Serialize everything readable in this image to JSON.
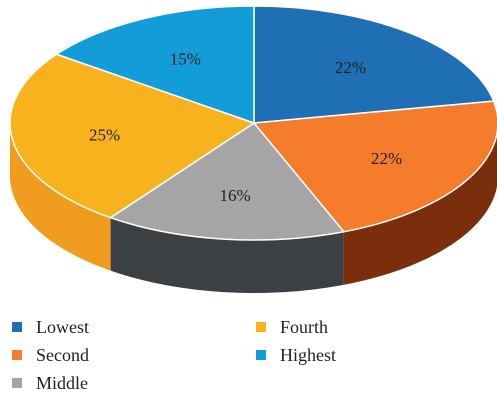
{
  "chart_data": {
    "type": "pie",
    "style": "3d",
    "title": "",
    "categories": [
      "Lowest",
      "Second",
      "Middle",
      "Fourth",
      "Highest"
    ],
    "values": [
      22,
      22,
      16,
      25,
      15
    ],
    "labels": [
      "22%",
      "22%",
      "16%",
      "25%",
      "15%"
    ],
    "colors": [
      "#1f6fb5",
      "#f47c2a",
      "#a5a5a5",
      "#f7b21e",
      "#129cd8"
    ],
    "side_colors": [
      "#1a5a94",
      "#7a2e0c",
      "#3d4042",
      "#f09c1e",
      "#0e80b2"
    ],
    "legend": {
      "position": "bottom-left",
      "items": [
        {
          "label": "Lowest",
          "color": "#1f6fb5"
        },
        {
          "label": "Second",
          "color": "#f47c2a"
        },
        {
          "label": "Middle",
          "color": "#a5a5a5"
        },
        {
          "label": "Fourth",
          "color": "#f7b21e"
        },
        {
          "label": "Highest",
          "color": "#129cd8"
        }
      ]
    }
  }
}
